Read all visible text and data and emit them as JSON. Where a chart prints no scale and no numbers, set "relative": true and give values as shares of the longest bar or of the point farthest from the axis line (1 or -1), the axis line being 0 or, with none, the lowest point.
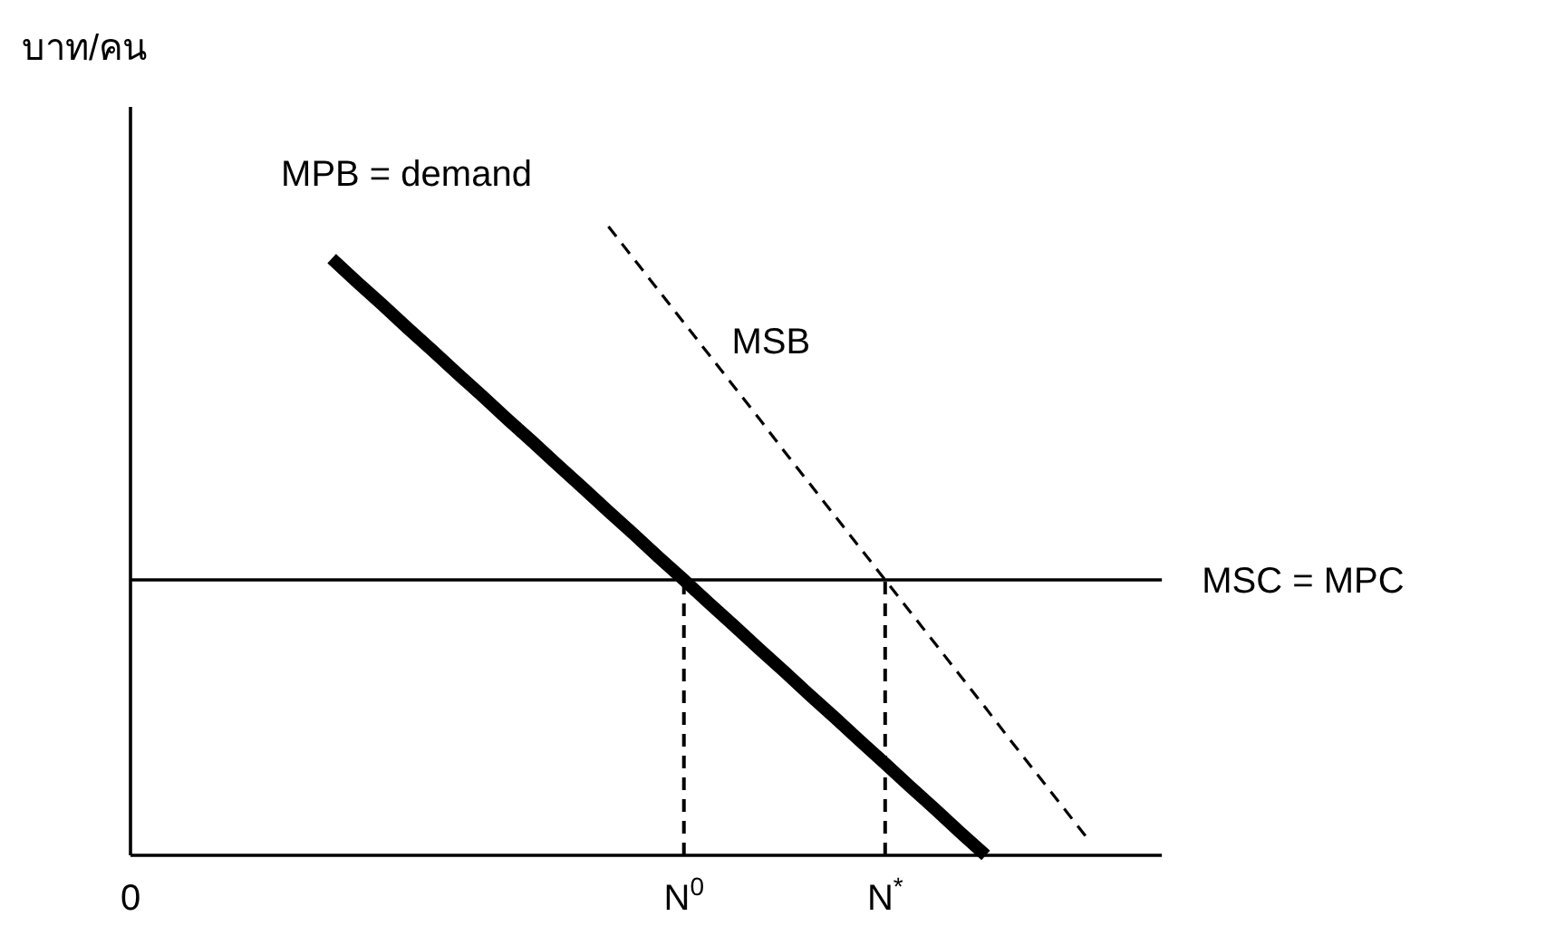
{
  "chart_data": {
    "type": "line",
    "relative": true,
    "ylabel": "บาท/คน",
    "categories": [
      "0",
      null,
      null,
      null,
      null,
      null,
      null,
      null,
      null,
      null,
      null,
      null,
      null,
      null,
      null,
      null,
      null,
      null,
      null,
      null,
      null,
      null,
      "N$^{0}$",
      null,
      null,
      null,
      null,
      null,
      null,
      null,
      "N$^{*}$",
      null,
      null,
      null,
      null,
      null,
      null,
      null,
      null,
      null,
      null,
      null
    ],
    "legend": false,
    "marker": "none",
    "ref_lines": [
      {
        "axis": "x",
        "value": "N$^{0}$",
        "line_style": "dashed",
        "color": "#000000"
      },
      {
        "axis": "x",
        "value": "N$^{*}$",
        "line_style": "dashed",
        "color": "#000000"
      }
    ],
    "series": [
      {
        "name": "MPB = demand",
        "color": "#000000",
        "line_style": "solid",
        "values": [
          null,
          null,
          null,
          null,
          null,
          null,
          null,
          null,
          0.949,
          0.912,
          0.876,
          0.839,
          0.803,
          0.766,
          0.73,
          0.693,
          0.657,
          0.62,
          0.584,
          0.547,
          0.511,
          0.474,
          0.438,
          0.401,
          0.365,
          0.328,
          0.292,
          0.255,
          0.219,
          0.182,
          0.146,
          0.109,
          0.073,
          0.036,
          0,
          null,
          null,
          null,
          null,
          null,
          null,
          null
        ]
      },
      {
        "name": "MSB",
        "color": "#000000",
        "line_style": "dashed",
        "values": [
          null,
          null,
          null,
          null,
          null,
          null,
          null,
          null,
          null,
          null,
          null,
          null,
          null,
          null,
          null,
          null,
          null,
          null,
          null,
          1,
          0.949,
          0.898,
          0.847,
          0.796,
          0.745,
          0.694,
          0.642,
          0.591,
          0.54,
          0.489,
          0.438,
          0.387,
          0.336,
          0.285,
          0.234,
          0.182,
          0.131,
          0.08,
          0.029,
          null,
          null,
          null
        ]
      },
      {
        "name": "MSC = MPC",
        "color": "#000000",
        "line_style": "solid",
        "values": [
          0.438,
          0.438,
          0.438,
          0.438,
          0.438,
          0.438,
          0.438,
          0.438,
          0.438,
          0.438,
          0.438,
          0.438,
          0.438,
          0.438,
          0.438,
          0.438,
          0.438,
          0.438,
          0.438,
          0.438,
          0.438,
          0.438,
          0.438,
          0.438,
          0.438,
          0.438,
          0.438,
          0.438,
          0.438,
          0.438,
          0.438,
          0.438,
          0.438,
          0.438,
          0.438,
          0.438,
          0.438,
          0.438,
          0.438,
          0.438,
          0.438,
          0.438
        ]
      }
    ]
  }
}
